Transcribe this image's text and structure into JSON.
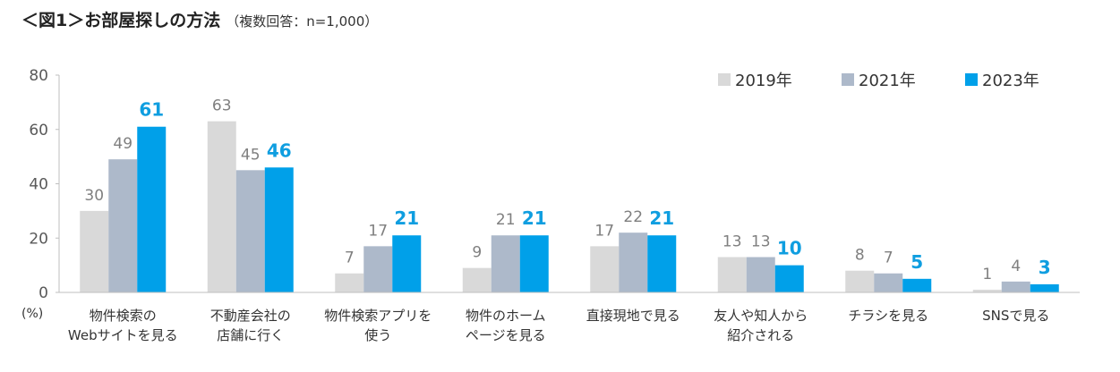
{
  "title": "＜図1＞お部屋探しの方法",
  "subtitle": "（複数回答：n=1,000）",
  "chart_data": {
    "type": "bar",
    "unit_label": "(%)",
    "ylim": [
      0,
      80
    ],
    "y_ticks": [
      "0",
      "20",
      "40",
      "60",
      "80"
    ],
    "grid": false,
    "legend_position": "top-right",
    "categories": [
      [
        "物件検索の",
        "Webサイトを見る"
      ],
      [
        "不動産会社の",
        "店舗に行く"
      ],
      [
        "物件検索アプリを",
        "使う"
      ],
      [
        "物件のホーム",
        "ページを見る"
      ],
      [
        "直接現地で見る"
      ],
      [
        "友人や知人から",
        "紹介される"
      ],
      [
        "チラシを見る"
      ],
      [
        "SNSで見る"
      ]
    ],
    "series": [
      {
        "name": "2019年",
        "color": "#d9d9d9",
        "label_color": "#7f7f7f",
        "bold": false,
        "values": [
          30,
          63,
          7,
          9,
          17,
          13,
          8,
          1
        ]
      },
      {
        "name": "2021年",
        "color": "#adb9ca",
        "label_color": "#7f7f7f",
        "bold": false,
        "values": [
          49,
          45,
          17,
          21,
          22,
          13,
          7,
          4
        ]
      },
      {
        "name": "2023年",
        "color": "#00a0e9",
        "label_color": "#0f9ee0",
        "bold": true,
        "values": [
          61,
          46,
          21,
          21,
          21,
          10,
          5,
          3
        ]
      }
    ]
  }
}
